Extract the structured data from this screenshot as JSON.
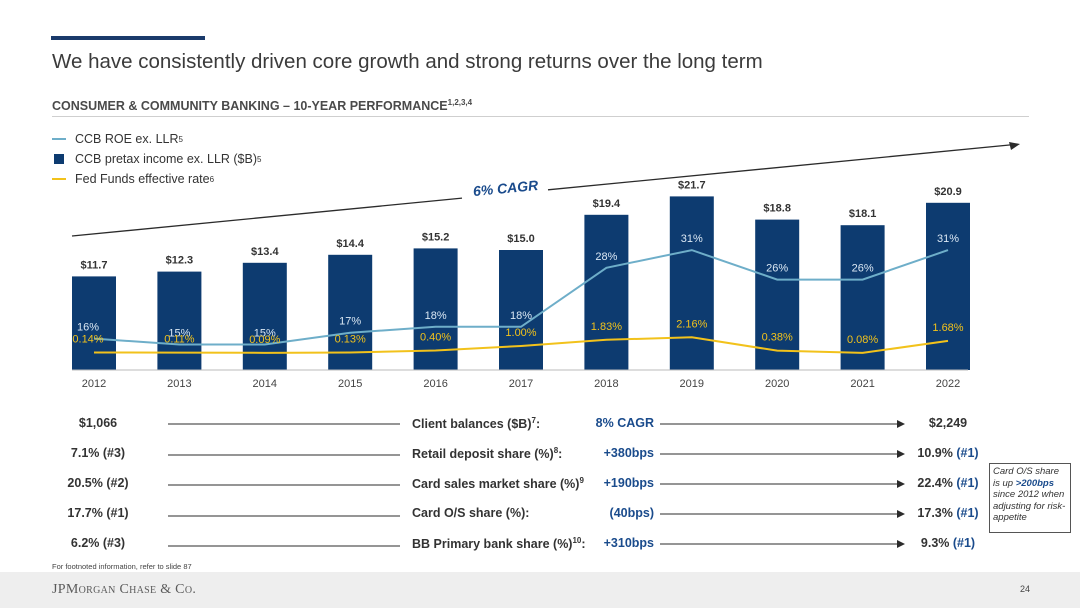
{
  "page": {
    "title": "We have consistently driven core growth and strong returns over the long term",
    "subtitle": "CONSUMER & COMMUNITY BANKING – 10-YEAR PERFORMANCE",
    "subtitle_footnote": "1,2,3,4",
    "footnote": "For footnoted information, refer to slide 87",
    "logo": "JPMorgan Chase & Co.",
    "page_number": "24"
  },
  "colors": {
    "navy": "#0d3b70",
    "roe_line": "#6eaec9",
    "fed_line": "#f2c21b",
    "cagr_text": "#1a4b8c",
    "rank": "#1a4b8c"
  },
  "legend": [
    {
      "label": "CCB ROE ex. LLR",
      "sup": "5",
      "swatch": "line",
      "color": "#6eaec9"
    },
    {
      "label": "CCB pretax income ex. LLR ($B)",
      "sup": "5",
      "swatch": "box",
      "color": "#0d3b70"
    },
    {
      "label": "Fed Funds effective rate",
      "sup": "6",
      "swatch": "line",
      "color": "#f2c21b"
    }
  ],
  "chart_data": {
    "type": "bar",
    "categories": [
      "2012",
      "2013",
      "2014",
      "2015",
      "2016",
      "2017",
      "2018",
      "2019",
      "2020",
      "2021",
      "2022"
    ],
    "series": [
      {
        "name": "CCB pretax income ex. LLR ($B)",
        "kind": "bar",
        "values": [
          11.7,
          12.3,
          13.4,
          14.4,
          15.2,
          15.0,
          19.4,
          21.7,
          18.8,
          18.1,
          20.9
        ],
        "labels": [
          "$11.7",
          "$12.3",
          "$13.4",
          "$14.4",
          "$15.2",
          "$15.0",
          "$19.4",
          "$21.7",
          "$18.8",
          "$18.1",
          "$20.9"
        ]
      },
      {
        "name": "CCB ROE ex. LLR",
        "kind": "line",
        "values": [
          16,
          15,
          15,
          17,
          18,
          18,
          28,
          31,
          26,
          26,
          31
        ],
        "labels": [
          "16%",
          "15%",
          "15%",
          "17%",
          "18%",
          "18%",
          "28%",
          "31%",
          "26%",
          "26%",
          "31%"
        ]
      },
      {
        "name": "Fed Funds effective rate",
        "kind": "line",
        "values": [
          0.14,
          0.11,
          0.09,
          0.13,
          0.4,
          1.0,
          1.83,
          2.16,
          0.38,
          0.08,
          1.68
        ],
        "labels": [
          "0.14%",
          "0.11%",
          "0.09%",
          "0.13%",
          "0.40%",
          "1.00%",
          "1.83%",
          "2.16%",
          "0.38%",
          "0.08%",
          "1.68%"
        ]
      }
    ],
    "annotation": "6% CAGR",
    "legend_position": "top-left",
    "grid": false
  },
  "metrics": [
    {
      "start": "$1,066",
      "label": "Client balances ($B)",
      "sup": "7",
      "suffix": ":",
      "change": "8% CAGR",
      "end": "$2,249",
      "end_rank": ""
    },
    {
      "start": "7.1% (#3)",
      "label": "Retail deposit share (%)",
      "sup": "8",
      "suffix": ":",
      "change": "+380bps",
      "end": "10.9%",
      "end_rank": "(#1)"
    },
    {
      "start": "20.5% (#2)",
      "label": "Card sales market share (%)",
      "sup": "9",
      "suffix": "",
      "change": "+190bps",
      "end": "22.4%",
      "end_rank": "(#1)"
    },
    {
      "start": "17.7% (#1)",
      "label": "Card O/S share (%):",
      "sup": "",
      "suffix": "",
      "change": "(40bps)",
      "end": "17.3%",
      "end_rank": "(#1)"
    },
    {
      "start": "6.2% (#3)",
      "label": "BB Primary bank share (%)",
      "sup": "10",
      "suffix": ":",
      "change": "+310bps",
      "end": "9.3%",
      "end_rank": "(#1)"
    }
  ],
  "note_box": {
    "before": "Card O/S share is up ",
    "highlight": ">200bps",
    "after": " since 2012 when adjusting for risk-appetite"
  }
}
